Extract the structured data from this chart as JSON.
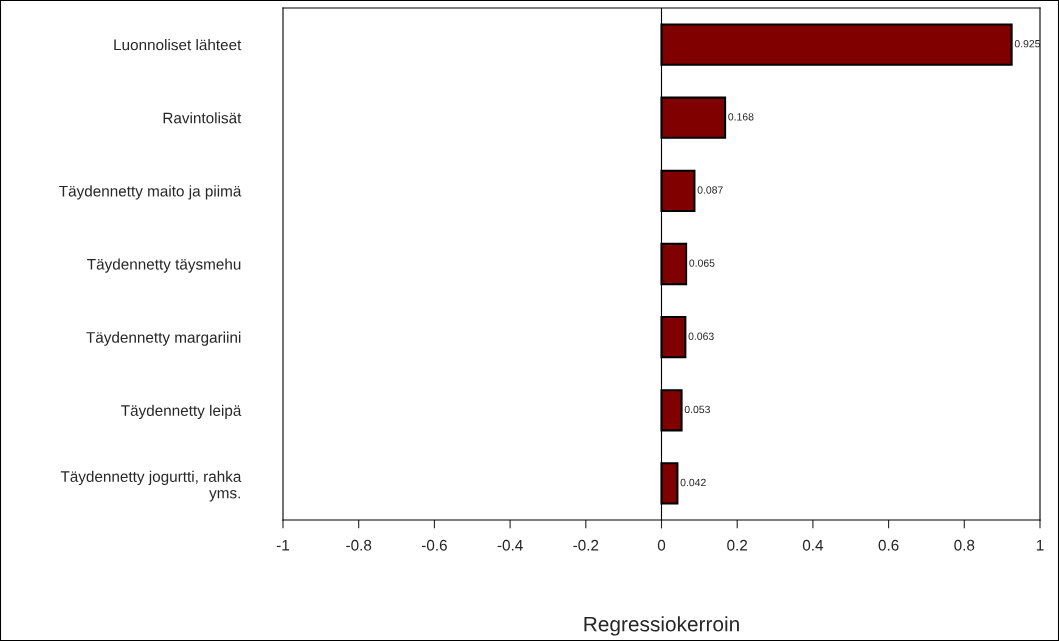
{
  "chart_data": {
    "type": "bar",
    "orientation": "horizontal",
    "xlabel": "Regressiokerroin",
    "categories": [
      "Luonnoliset lähteet",
      "Ravintolisät",
      "Täydennetty maito ja piimä",
      "Täydennetty täysmehu",
      "Täydennetty margariini",
      "Täydennetty leipä",
      "Täydennetty jogurtti, rahka yms."
    ],
    "values": [
      0.925,
      0.168,
      0.087,
      0.065,
      0.063,
      0.053,
      0.042
    ],
    "color": "#800000",
    "data_labels": true,
    "xlim": [
      -1,
      1
    ],
    "xticks": [
      -1,
      -0.8,
      -0.6,
      -0.4,
      -0.2,
      0,
      0.2,
      0.4,
      0.6,
      0.8,
      1
    ],
    "legend": false
  }
}
